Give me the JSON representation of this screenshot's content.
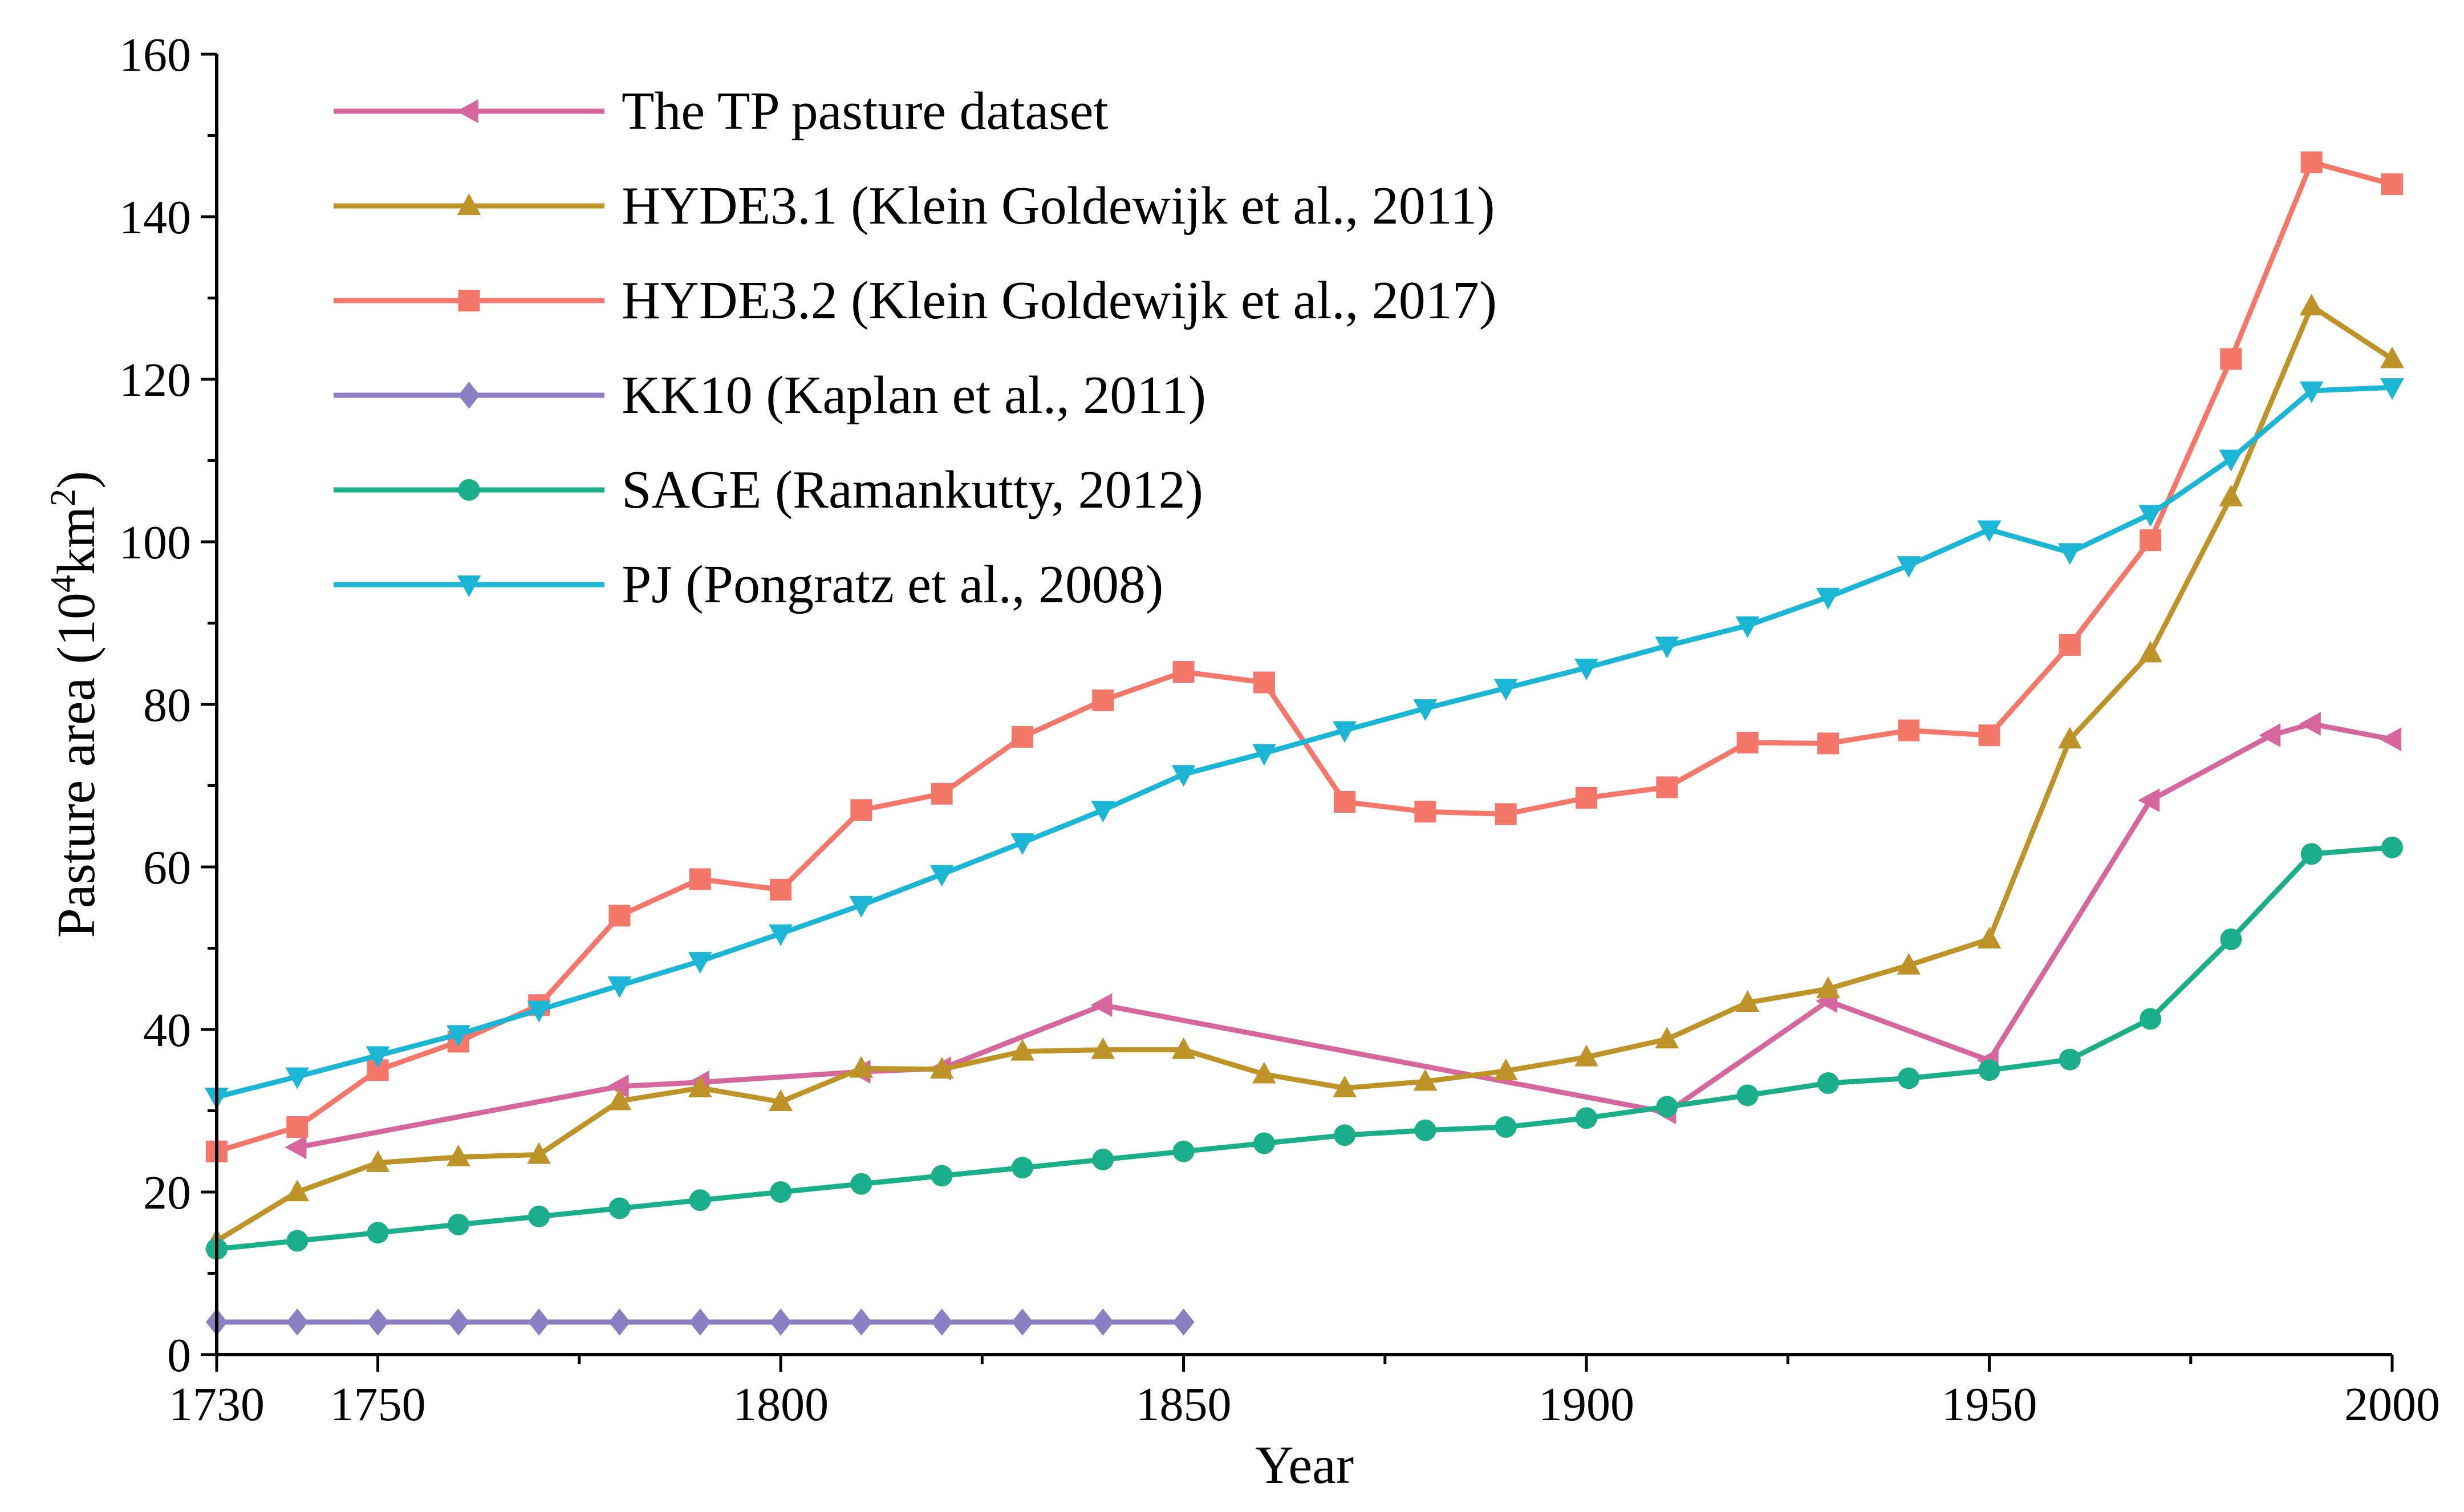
{
  "chart_data": {
    "type": "line",
    "title": "",
    "xlabel": "Year",
    "ylabel_prefix": "Pasture area (10",
    "ylabel_sup1": "4",
    "ylabel_mid": "km",
    "ylabel_sup2": "2",
    "ylabel_suffix": ")",
    "xlim": [
      1730,
      2000
    ],
    "ylim": [
      0,
      160
    ],
    "x_ticks": [
      1730,
      1750,
      1800,
      1850,
      1900,
      1950,
      2000
    ],
    "x_tick_labels": [
      "1730",
      "1750",
      "1800",
      "1850",
      "1900",
      "1950",
      "2000"
    ],
    "x_minor_step": 25,
    "y_ticks": [
      0,
      20,
      40,
      60,
      80,
      100,
      120,
      140,
      160
    ],
    "y_tick_labels": [
      "0",
      "20",
      "40",
      "60",
      "80",
      "100",
      "120",
      "140",
      "160"
    ],
    "y_minor_step": 10,
    "grid": false,
    "legend_position": "top-left",
    "series": [
      {
        "name": "The TP pasture dataset",
        "color": "#D6679E",
        "marker": "triangle-left",
        "x": [
          1740,
          1780,
          1790,
          1810,
          1820,
          1840,
          1910,
          1930,
          1950,
          1970,
          1985,
          1990,
          2000
        ],
        "y": [
          25.5,
          33,
          33.5,
          34.8,
          35.2,
          43,
          29.8,
          43.5,
          36.2,
          68.2,
          76.2,
          77.6,
          75.7
        ]
      },
      {
        "name": "HYDE3.1 (Klein Goldewijk et al., 2011)",
        "color": "#BE9428",
        "marker": "triangle-up",
        "x": [
          1730,
          1740,
          1750,
          1760,
          1770,
          1780,
          1790,
          1800,
          1810,
          1820,
          1830,
          1840,
          1850,
          1860,
          1870,
          1880,
          1890,
          1900,
          1910,
          1920,
          1930,
          1940,
          1950,
          1960,
          1970,
          1980,
          1990,
          2000
        ],
        "y": [
          14,
          20,
          23.6,
          24.3,
          24.6,
          31.2,
          32.8,
          31.1,
          35.2,
          35.1,
          37.3,
          37.5,
          37.5,
          34.5,
          32.8,
          33.6,
          34.9,
          36.6,
          38.8,
          43.3,
          45,
          47.9,
          51.1,
          75.7,
          86.3,
          105.5,
          129,
          122.5
        ]
      },
      {
        "name": "HYDE3.2 (Klein Goldewijk et al., 2017)",
        "color": "#F4776A",
        "marker": "square",
        "x": [
          1730,
          1740,
          1750,
          1760,
          1770,
          1780,
          1790,
          1800,
          1810,
          1820,
          1830,
          1840,
          1850,
          1860,
          1870,
          1880,
          1890,
          1900,
          1910,
          1920,
          1930,
          1940,
          1950,
          1960,
          1970,
          1980,
          1990,
          2000
        ],
        "y": [
          25,
          28,
          35,
          38.5,
          43,
          54,
          58.5,
          57.2,
          67,
          69,
          76,
          80.5,
          84,
          82.7,
          68,
          66.8,
          66.5,
          68.5,
          69.8,
          75.3,
          75.2,
          76.8,
          76.2,
          87.3,
          100.2,
          122.5,
          146.7,
          144
        ]
      },
      {
        "name": "KK10 (Kaplan et al., 2011)",
        "color": "#8C7EC2",
        "marker": "diamond",
        "x": [
          1730,
          1740,
          1750,
          1760,
          1770,
          1780,
          1790,
          1800,
          1810,
          1820,
          1830,
          1840,
          1850
        ],
        "y": [
          4,
          4,
          4,
          4,
          4,
          4,
          4,
          4,
          4,
          4,
          4,
          4,
          4
        ]
      },
      {
        "name": "SAGE (Ramankutty, 2012)",
        "color": "#1AAE8A",
        "marker": "circle",
        "x": [
          1730,
          1740,
          1750,
          1760,
          1770,
          1780,
          1790,
          1800,
          1810,
          1820,
          1830,
          1840,
          1850,
          1860,
          1870,
          1880,
          1890,
          1900,
          1910,
          1920,
          1930,
          1940,
          1950,
          1960,
          1970,
          1980,
          1990,
          2000
        ],
        "y": [
          13,
          14,
          15,
          16,
          17,
          18,
          19,
          20,
          21,
          22,
          23,
          24,
          25,
          26,
          27,
          27.6,
          28,
          29.1,
          30.5,
          31.9,
          33.4,
          34,
          35,
          36.3,
          41.3,
          51.1,
          61.6,
          62.4
        ]
      },
      {
        "name": "PJ (Pongratz et al., 2008)",
        "color": "#1BB5D6",
        "marker": "triangle-down",
        "x": [
          1730,
          1740,
          1750,
          1760,
          1770,
          1780,
          1790,
          1800,
          1810,
          1820,
          1830,
          1840,
          1850,
          1860,
          1870,
          1880,
          1890,
          1900,
          1910,
          1920,
          1930,
          1940,
          1950,
          1960,
          1970,
          1980,
          1990,
          2000
        ],
        "y": [
          31.7,
          34.2,
          36.8,
          39.4,
          42.4,
          45.4,
          48.4,
          51.8,
          55.3,
          59.1,
          63,
          67,
          71.4,
          74,
          76.8,
          79.5,
          82,
          84.5,
          87.2,
          89.7,
          93.2,
          97.1,
          101.5,
          98.7,
          103.4,
          110.2,
          118.6,
          119
        ]
      }
    ]
  }
}
